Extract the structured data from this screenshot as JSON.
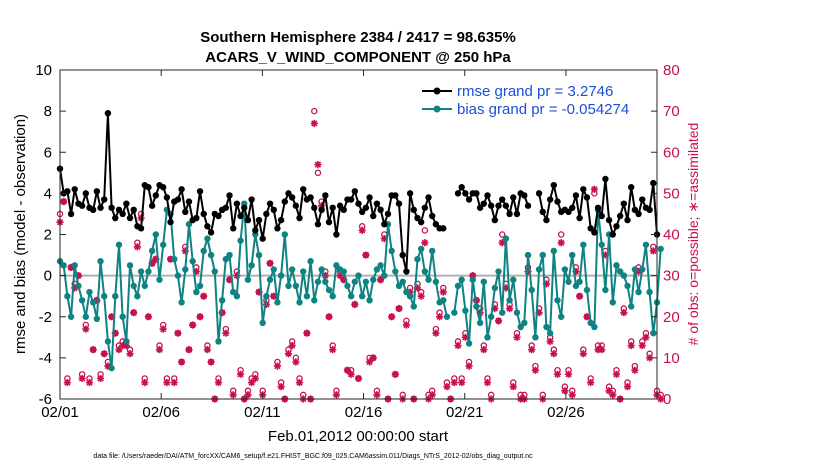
{
  "colors": {
    "rmse": "#000000",
    "bias": "#0f8282",
    "obs": "#c8104f",
    "legend_text": "#1a4fd6",
    "zero_line": "#b0b0b0",
    "axes": "#262626"
  },
  "chart_data": {
    "type": "line",
    "title": "Southern Hemisphere 2384 / 2417 = 98.635%",
    "subtitle": "ACARS_V_WIND_COMPONENT @ 250 hPa",
    "xlabel": "Feb.01,2012 00:00:00 start",
    "ylabel": "rmse and bias (model - observation)",
    "ylabel_right": "# of obs: o=possible; ∗=assimilated",
    "footnote": "data file: /Users/raeder/DAI/ATM_forcXX/CAM6_setup/f.e21.FHIST_BGC.f09_025.CAM6assim.011/Diags_NTrS_2012-02/obs_diag_output.nc",
    "xlim": [
      0,
      29.5
    ],
    "ylim": [
      -6,
      10
    ],
    "ylim_right": [
      0,
      80
    ],
    "xticks": [
      0,
      5,
      10,
      15,
      20,
      25
    ],
    "xtick_labels": [
      "02/01",
      "02/06",
      "02/11",
      "02/16",
      "02/21",
      "02/26"
    ],
    "yticks": [
      -6,
      -4,
      -2,
      0,
      2,
      4,
      6,
      8,
      10
    ],
    "yticks_right": [
      0,
      10,
      20,
      30,
      40,
      50,
      60,
      70,
      80
    ],
    "legend_position": "top-right",
    "series": [
      {
        "name": "rmse grand pr = 3.2746",
        "style": "line-circle",
        "color": "#000000",
        "values": [
          5.2,
          4.0,
          4.1,
          3.0,
          4.2,
          3.5,
          3.4,
          4.0,
          3.3,
          3.2,
          4.1,
          3.3,
          3.7,
          7.9,
          3.3,
          2.8,
          3.2,
          3.0,
          3.5,
          2.8,
          3.2,
          2.4,
          2.3,
          4.4,
          4.3,
          3.4,
          3.9,
          4.4,
          4.3,
          3.8,
          2.6,
          3.6,
          3.7,
          4.2,
          3.1,
          3.6,
          2.7,
          2.8,
          4.1,
          3.0,
          2.4,
          2.1,
          3.0,
          2.9,
          3.2,
          3.3,
          3.9,
          2.3,
          3.5,
          2.9,
          3.3,
          2.7,
          3.7,
          2.2,
          2.7,
          1.8,
          3.0,
          3.5,
          3.2,
          2.3,
          2.7,
          3.6,
          4.0,
          3.8,
          3.4,
          2.8,
          4.2,
          3.7,
          3.8,
          3.3,
          2.5,
          3.2,
          3.9,
          2.6,
          3.3,
          2.0,
          3.4,
          3.2,
          3.7,
          3.7,
          4.1,
          3.5,
          3.1,
          3.3,
          3.8,
          2.9,
          3.5,
          3.2,
          2.5,
          3.0,
          3.9,
          3.9,
          3.5,
          1.0,
          0.2,
          4.0,
          3.2,
          2.8,
          2.6,
          3.3,
          3.8,
          2.9,
          2.5,
          2.3,
          2.3,
          null,
          null,
          null,
          4.0,
          4.3,
          4.0,
          3.7,
          4.0,
          4.0,
          3.3,
          3.5,
          3.9,
          3.4,
          2.7,
          3.4,
          3.7,
          3.4,
          3.0,
          3.8,
          3.0,
          4.0,
          3.9,
          3.4,
          null,
          null,
          4.0,
          3.1,
          2.7,
          3.7,
          4.4,
          3.6,
          3.1,
          3.2,
          3.1,
          3.3,
          3.9,
          2.8,
          4.2,
          3.8,
          2.3,
          2.1,
          3.3,
          2.9,
          4.7,
          2.7,
          2.0,
          2.4,
          2.9,
          3.5,
          2.7,
          4.3,
          3.2,
          3.0,
          3.7,
          3.3,
          3.2,
          4.5,
          2.0
        ]
      },
      {
        "name": "bias grand pr = -0.054274",
        "style": "line-circle",
        "color": "#0f8282",
        "values": [
          0.7,
          0.5,
          -1.0,
          -2.0,
          0.5,
          -0.5,
          -1.2,
          -2.0,
          -0.8,
          -1.3,
          -2.1,
          0.7,
          -1.0,
          -3.2,
          -4.5,
          -1.0,
          1.5,
          -2.0,
          -3.2,
          0.5,
          -0.5,
          -1.0,
          0.2,
          -0.5,
          0.2,
          1.2,
          2.0,
          -0.2,
          1.5,
          3.2,
          3.0,
          0.8,
          0.0,
          -1.3,
          0.3,
          2.5,
          0.7,
          -0.8,
          -0.5,
          1.2,
          1.8,
          1.0,
          0.2,
          -3.2,
          -1.2,
          0.8,
          1.0,
          -0.8,
          -1.0,
          1.7,
          3.5,
          -0.2,
          0.5,
          2.0,
          1.0,
          -2.3,
          -1.0,
          -0.2,
          0.3,
          -1.3,
          0.0,
          2.0,
          -0.5,
          0.3,
          -0.5,
          -1.3,
          0.2,
          -1.0,
          0.7,
          -1.2,
          -0.3,
          0.3,
          -0.3,
          -0.7,
          -1.0,
          0.5,
          0.3,
          0.2,
          -0.5,
          -1.0,
          -0.3,
          0.0,
          -1.0,
          -0.3,
          -1.2,
          -0.2,
          0.3,
          0.5,
          0.0,
          2.5,
          1.2,
          0.2,
          -0.5,
          -0.3,
          -0.8,
          -1.0,
          -1.5,
          0.8,
          1.3,
          0.2,
          -0.2,
          1.2,
          -0.3,
          -1.3,
          -1.2,
          -2.0,
          null,
          -1.8,
          -0.5,
          -0.2,
          -1.7,
          -3.3,
          -0.2,
          -1.5,
          -2.3,
          -0.3,
          -3.0,
          -2.0,
          -0.6,
          0.2,
          -1.8,
          1.8,
          -1.2,
          -0.2,
          -1.8,
          -2.5,
          -2.3,
          1.0,
          -0.7,
          -3.0,
          0.3,
          1.0,
          -2.5,
          -2.8,
          1.2,
          -1.2,
          -2.0,
          0.3,
          -0.3,
          1.0,
          -0.5,
          -0.3,
          1.5,
          -0.7,
          -2.3,
          -2.5,
          3.2,
          1.5,
          -0.7,
          2.0,
          -1.3,
          0.5,
          0.2,
          0.0,
          -0.5,
          -1.5,
          0.3,
          -0.8,
          0.3,
          1.5,
          -0.8,
          -2.8,
          -1.3,
          1.3
        ]
      },
      {
        "name": "# obs possible",
        "axis": "right",
        "style": "open-circle",
        "color": "#c8104f",
        "values": [
          45,
          48,
          5,
          32,
          28,
          30,
          6,
          18,
          5,
          12,
          24,
          6,
          11,
          9,
          20,
          16,
          13,
          14,
          14,
          12,
          21,
          38,
          45,
          5,
          20,
          33,
          34,
          13,
          18,
          5,
          34,
          5,
          16,
          9,
          37,
          12,
          18,
          32,
          20,
          25,
          13,
          9,
          0,
          5,
          21,
          17,
          29,
          2,
          31,
          7,
          0,
          2,
          5,
          6,
          26,
          2,
          24,
          33,
          25,
          9,
          4,
          0,
          12,
          14,
          10,
          5,
          1,
          16,
          0,
          70,
          55,
          48,
          31,
          20,
          13,
          2,
          31,
          29,
          7,
          7,
          23,
          5,
          42,
          35,
          10,
          10,
          2,
          29,
          40,
          0,
          20,
          6,
          22,
          1,
          19,
          27,
          0,
          28,
          26,
          41,
          1,
          2,
          17,
          21,
          27,
          4,
          0,
          5,
          14,
          5,
          16,
          9,
          30,
          24,
          22,
          13,
          5,
          1,
          23,
          19,
          40,
          28,
          23,
          4,
          16,
          1,
          1,
          32,
          13,
          8,
          22,
          1,
          29,
          15,
          12,
          7,
          40,
          3,
          7,
          2,
          32,
          25,
          12,
          20,
          5,
          50,
          13,
          13,
          36,
          3,
          2,
          7,
          0,
          22,
          4,
          14,
          8,
          32,
          14,
          16,
          11,
          37,
          2,
          1
        ]
      },
      {
        "name": "# obs assimilated",
        "axis": "right",
        "style": "asterisk",
        "color": "#c8104f",
        "values": [
          43,
          48,
          4,
          32,
          27,
          30,
          5,
          17,
          4,
          12,
          24,
          5,
          11,
          8,
          20,
          16,
          12,
          13,
          13,
          11,
          21,
          37,
          44,
          4,
          20,
          33,
          34,
          12,
          17,
          4,
          34,
          4,
          16,
          9,
          36,
          12,
          18,
          31,
          20,
          25,
          12,
          9,
          0,
          4,
          21,
          16,
          29,
          1,
          30,
          6,
          0,
          1,
          4,
          5,
          26,
          1,
          23,
          33,
          25,
          8,
          3,
          0,
          11,
          13,
          9,
          4,
          0,
          16,
          0,
          67,
          57,
          47,
          30,
          20,
          12,
          1,
          30,
          29,
          7,
          6,
          23,
          5,
          41,
          35,
          9,
          10,
          1,
          29,
          39,
          0,
          20,
          6,
          22,
          0,
          18,
          26,
          0,
          27,
          25,
          38,
          0,
          1,
          16,
          20,
          26,
          3,
          0,
          4,
          13,
          4,
          15,
          8,
          30,
          24,
          21,
          12,
          4,
          0,
          22,
          19,
          38,
          27,
          22,
          3,
          15,
          0,
          0,
          31,
          12,
          7,
          21,
          0,
          28,
          14,
          11,
          6,
          38,
          2,
          6,
          1,
          31,
          25,
          11,
          20,
          4,
          51,
          12,
          12,
          35,
          2,
          1,
          6,
          0,
          21,
          3,
          13,
          7,
          31,
          13,
          15,
          10,
          36,
          1,
          0
        ]
      }
    ]
  }
}
